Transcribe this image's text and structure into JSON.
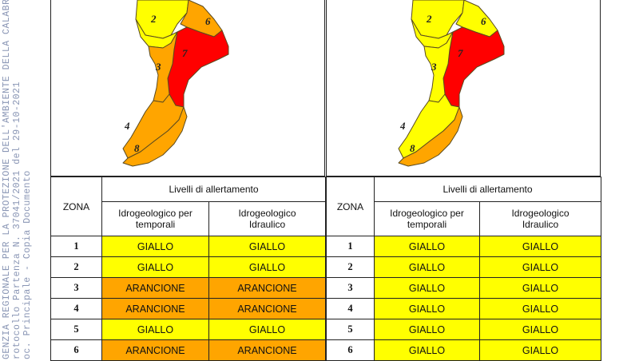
{
  "stamp_lines": [
    "GENZIA REGIONALE PER LA PROTEZIONE DELL'AMBIENTE DELLA CALABRIA",
    "rotocollo Partenza N. 37041/2021 del 29-10-2021",
    "oc. Principale - Copia Documento"
  ],
  "colors": {
    "giallo": "#ffff00",
    "arancione": "#ffa500",
    "rosso": "#ff0000"
  },
  "panels": [
    {
      "map_zone_labels": [
        "2",
        "6",
        "7",
        "3",
        "4",
        "8"
      ],
      "map_zone_colors": {
        "2": "giallo",
        "6": "arancione",
        "7": "rosso",
        "3": "arancione",
        "4": "arancione",
        "8": "arancione",
        "north": "giallo"
      },
      "header": {
        "zona": "ZONA",
        "livelli": "Livelli di allertamento",
        "col1_line1": "Idrogeologico per",
        "col1_line2": "temporali",
        "col2_line1": "Idrogeologico",
        "col2_line2": "Idraulico"
      },
      "rows": [
        {
          "zona": "1",
          "temporali": "GIALLO",
          "idraulico": "GIALLO"
        },
        {
          "zona": "2",
          "temporali": "GIALLO",
          "idraulico": "GIALLO"
        },
        {
          "zona": "3",
          "temporali": "ARANCIONE",
          "idraulico": "ARANCIONE"
        },
        {
          "zona": "4",
          "temporali": "ARANCIONE",
          "idraulico": "ARANCIONE"
        },
        {
          "zona": "5",
          "temporali": "GIALLO",
          "idraulico": "GIALLO"
        },
        {
          "zona": "6",
          "temporali": "ARANCIONE",
          "idraulico": "ARANCIONE"
        }
      ]
    },
    {
      "map_zone_labels": [
        "2",
        "6",
        "7",
        "3",
        "4",
        "8"
      ],
      "map_zone_colors": {
        "2": "giallo",
        "6": "giallo",
        "7": "rosso",
        "3": "giallo",
        "4": "giallo",
        "8": "arancione",
        "north": "giallo"
      },
      "header": {
        "zona": "ZONA",
        "livelli": "Livelli di allertamento",
        "col1_line1": "Idrogeologico per",
        "col1_line2": "temporali",
        "col2_line1": "Idrogeologico",
        "col2_line2": "Idraulico"
      },
      "rows": [
        {
          "zona": "1",
          "temporali": "GIALLO",
          "idraulico": "GIALLO"
        },
        {
          "zona": "2",
          "temporali": "GIALLO",
          "idraulico": "GIALLO"
        },
        {
          "zona": "3",
          "temporali": "GIALLO",
          "idraulico": "GIALLO"
        },
        {
          "zona": "4",
          "temporali": "GIALLO",
          "idraulico": "GIALLO"
        },
        {
          "zona": "5",
          "temporali": "GIALLO",
          "idraulico": "GIALLO"
        },
        {
          "zona": "6",
          "temporali": "GIALLO",
          "idraulico": "GIALLO"
        }
      ]
    }
  ]
}
